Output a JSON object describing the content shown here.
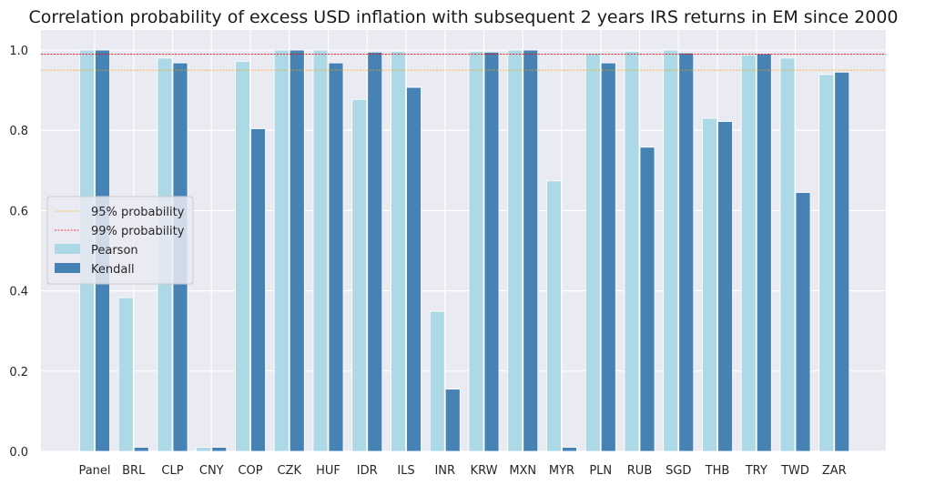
{
  "chart_data": {
    "type": "bar",
    "title": "Correlation probability of excess USD inflation with subsequent 2 years IRS returns in EM since 2000",
    "xlabel": "",
    "ylabel": "",
    "ylim": [
      0,
      1.05
    ],
    "yticks": [
      "0.0",
      "0.2",
      "0.4",
      "0.6",
      "0.8",
      "1.0"
    ],
    "grid": true,
    "legend_position": "center-left",
    "categories": [
      "Panel",
      "BRL",
      "CLP",
      "CNY",
      "COP",
      "CZK",
      "HUF",
      "IDR",
      "ILS",
      "INR",
      "KRW",
      "MXN",
      "MYR",
      "PLN",
      "RUB",
      "SGD",
      "THB",
      "TRY",
      "TWD",
      "ZAR"
    ],
    "series": [
      {
        "name": "Pearson",
        "color": "#add8e6",
        "values": [
          1.0,
          0.383,
          0.98,
          0.01,
          0.972,
          1.0,
          1.0,
          0.877,
          0.997,
          0.349,
          0.997,
          1.0,
          0.674,
          0.993,
          0.997,
          1.0,
          0.83,
          0.988,
          0.98,
          0.939
        ]
      },
      {
        "name": "Kendall",
        "color": "#4682b4",
        "values": [
          1.0,
          0.01,
          0.968,
          0.01,
          0.804,
          1.0,
          0.968,
          0.995,
          0.907,
          0.155,
          0.995,
          1.0,
          0.01,
          0.968,
          0.758,
          0.993,
          0.822,
          0.991,
          0.645,
          0.945
        ]
      }
    ],
    "reference_lines": [
      {
        "name": "95% probability",
        "value": 0.95,
        "color": "#ffa500"
      },
      {
        "name": "99% probability",
        "value": 0.99,
        "color": "#ff0000"
      }
    ],
    "background_color": "#eaeaf2"
  }
}
